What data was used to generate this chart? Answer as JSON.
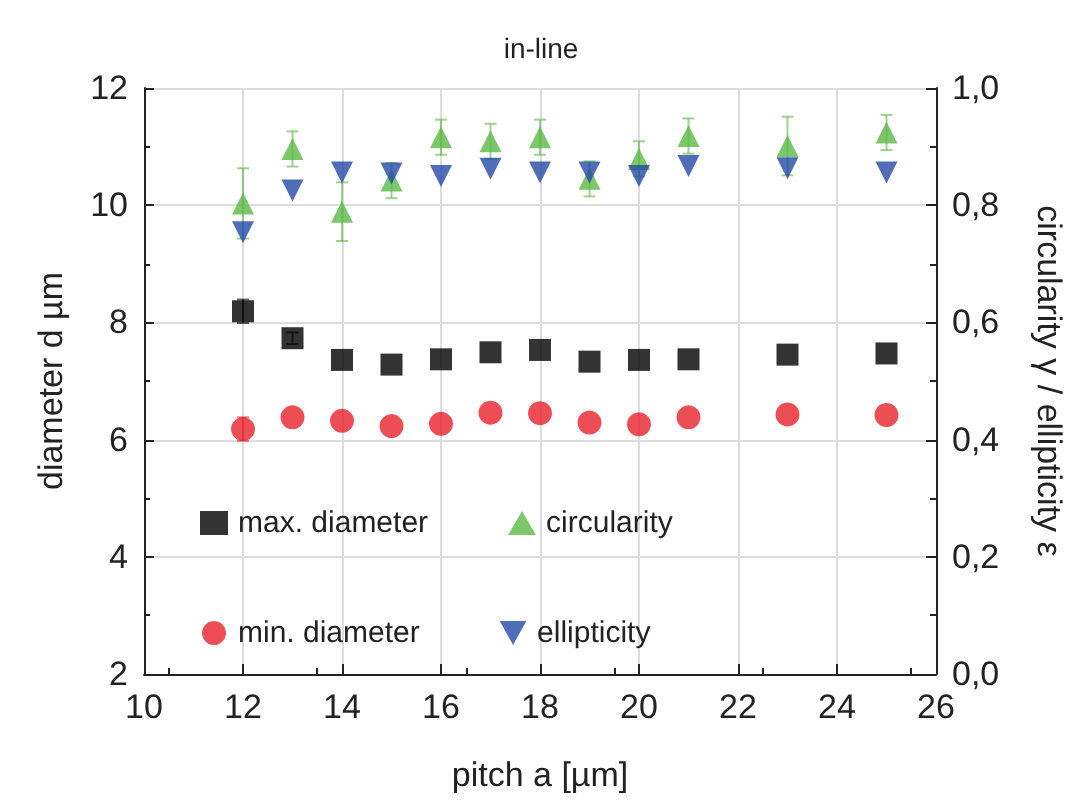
{
  "chart_data": {
    "type": "scatter",
    "title": "in-line",
    "xlabel": "pitch a [µm]",
    "ylabel": "diameter d µm",
    "y2label": "circularity γ / ellipticity ε",
    "x": [
      12,
      13,
      14,
      15,
      16,
      17,
      18,
      19,
      20,
      21,
      23,
      25
    ],
    "series": [
      {
        "name": "max. diameter",
        "color": "#000000",
        "marker": "square",
        "values": [
          8.19,
          7.73,
          7.36,
          7.28,
          7.37,
          7.49,
          7.53,
          7.33,
          7.36,
          7.37,
          7.45,
          7.47
        ],
        "errors": [
          0.2,
          0.1,
          null,
          null,
          null,
          null,
          null,
          null,
          null,
          null,
          null,
          null
        ]
      },
      {
        "name": "min. diameter",
        "color": "#e8202a",
        "marker": "circle",
        "values": [
          6.18,
          6.38,
          6.32,
          6.23,
          6.27,
          6.46,
          6.45,
          6.29,
          6.26,
          6.38,
          6.43,
          6.42
        ],
        "errors": [
          0.2,
          null,
          null,
          null,
          null,
          null,
          null,
          null,
          null,
          null,
          null,
          null
        ]
      },
      {
        "name": "circularity",
        "color": "#5cb946",
        "marker": "triangle",
        "axis": "y2",
        "values": [
          0.803,
          0.896,
          0.789,
          0.842,
          0.916,
          0.909,
          0.916,
          0.845,
          0.879,
          0.918,
          0.901,
          0.924
        ],
        "errors": [
          0.06,
          0.03,
          0.05,
          0.03,
          0.03,
          0.03,
          0.03,
          0.03,
          0.03,
          0.03,
          0.05,
          0.03
        ]
      },
      {
        "name": "ellipticity",
        "color": "#2348a8",
        "marker": "triangle-down",
        "axis": "y2",
        "values": [
          0.754,
          0.825,
          0.856,
          0.854,
          0.85,
          0.862,
          0.856,
          0.856,
          0.85,
          0.867,
          0.863,
          0.856
        ]
      }
    ],
    "xlim": [
      10,
      26
    ],
    "xticks": [
      10,
      12,
      14,
      16,
      18,
      20,
      22,
      24,
      26
    ],
    "ylim": [
      2,
      12
    ],
    "yticks": [
      2,
      4,
      6,
      8,
      10,
      12
    ],
    "y2lim": [
      0,
      1
    ],
    "y2ticks": [
      {
        "value": 0,
        "label": "0,0"
      },
      {
        "value": 0.2,
        "label": "0,2"
      },
      {
        "value": 0.4,
        "label": "0,4"
      },
      {
        "value": 0.6,
        "label": "0,6"
      },
      {
        "value": 0.8,
        "label": "0,8"
      },
      {
        "value": 1,
        "label": "1,0"
      }
    ],
    "grid": true,
    "legend": "bottom"
  }
}
